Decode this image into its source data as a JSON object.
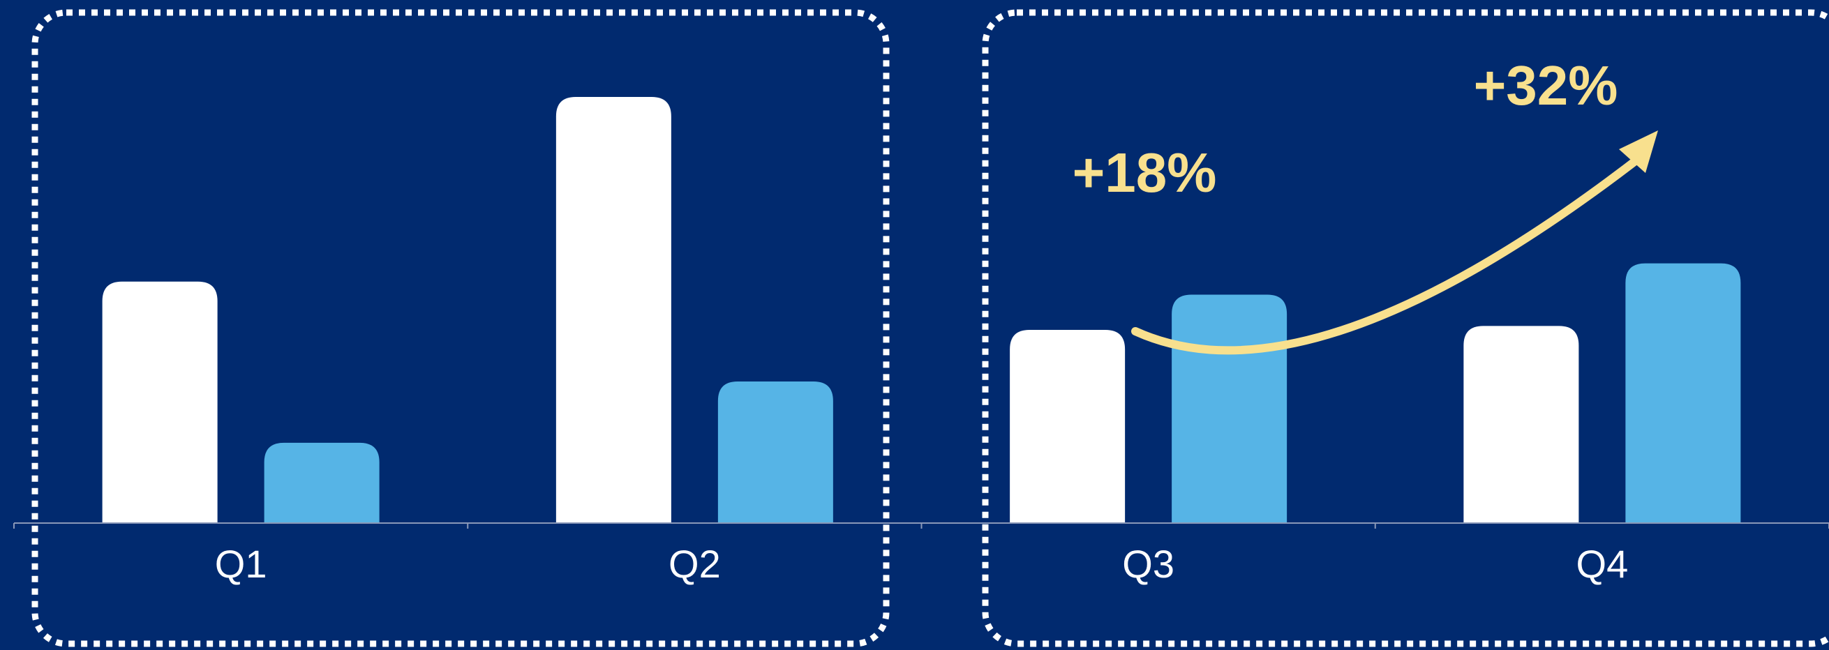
{
  "chart_data": {
    "type": "bar",
    "categories": [
      "Q1",
      "Q2",
      "Q3",
      "Q4"
    ],
    "series": [
      {
        "values": [
          370,
          653,
          296,
          302
        ],
        "color": "#ffffff"
      },
      {
        "values": [
          123,
          217,
          350,
          398
        ],
        "color": "#56b4e6"
      }
    ],
    "ylim": [
      0,
      700
    ],
    "grid": false,
    "legend": "none",
    "annotations": [
      {
        "text": "+18%",
        "color": "#f8e08e"
      },
      {
        "text": "+32%",
        "color": "#f8e08e"
      }
    ],
    "highlight_groups": [
      {
        "categories": [
          "Q1",
          "Q2"
        ],
        "style": "dotted-rounded-box",
        "color": "#ffffff"
      },
      {
        "categories": [
          "Q3",
          "Q4"
        ],
        "style": "dotted-rounded-box",
        "color": "#ffffff"
      }
    ],
    "trend_arrow": {
      "from": "Q3",
      "to": "Q4",
      "color": "#f8e08e"
    }
  },
  "colors": {
    "background": "#012a6f",
    "axis": "#8a98b8"
  }
}
